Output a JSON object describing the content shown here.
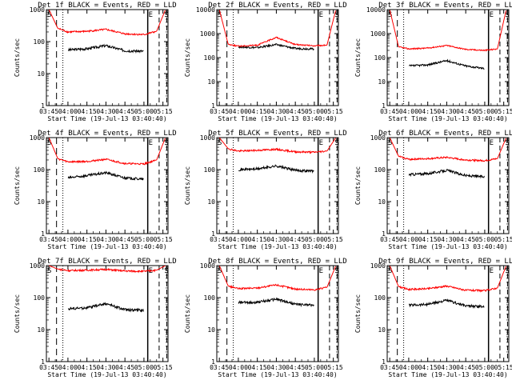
{
  "x_tick_labels": [
    "03:45",
    "04:00",
    "04:15",
    "04:30",
    "04:45",
    "05:00",
    "05:15"
  ],
  "y_tick_labels": [
    "1",
    "10",
    "100",
    "1000"
  ],
  "ylabel": "Counts/sec",
  "xlabel": "Start Time (19-Jul-13 03:40:40)",
  "markers": {
    "left": "S",
    "mid": "E",
    "right": "S"
  },
  "colors": {
    "events": "#000000",
    "lld": "#ff0000"
  },
  "chart_data": [
    {
      "type": "line",
      "title": "Det 1f BLACK = Events, RED = LLD",
      "xlabel": "Start Time (19-Jul-13 03:40:40)",
      "ylabel": "Counts/sec",
      "ylim": [
        1,
        1000
      ],
      "yscale": "log",
      "x": [
        "03:45",
        "03:52",
        "04:00",
        "04:15",
        "04:30",
        "04:45",
        "05:00",
        "05:10",
        "05:17"
      ],
      "series": [
        {
          "name": "BLACK = Events",
          "values": [
            null,
            null,
            55,
            60,
            75,
            52,
            50,
            null,
            null
          ]
        },
        {
          "name": "RED = LLD",
          "values": [
            1000,
            260,
            200,
            210,
            240,
            175,
            165,
            210,
            1000
          ]
        }
      ]
    },
    {
      "type": "line",
      "title": "Det 2f BLACK = Events, RED = LLD",
      "xlabel": "Start Time (19-Jul-13 03:40:40)",
      "ylabel": "Counts/sec",
      "ylim": [
        1,
        10000
      ],
      "yscale": "log",
      "x": [
        "03:45",
        "03:52",
        "04:00",
        "04:15",
        "04:30",
        "04:45",
        "05:00",
        "05:10",
        "05:17"
      ],
      "series": [
        {
          "name": "BLACK = Events",
          "values": [
            null,
            null,
            280,
            260,
            350,
            240,
            230,
            null,
            null
          ]
        },
        {
          "name": "RED = LLD",
          "values": [
            10000,
            360,
            300,
            330,
            700,
            350,
            310,
            330,
            10000
          ]
        }
      ]
    },
    {
      "type": "line",
      "title": "Det 3f BLACK = Events, RED = LLD",
      "xlabel": "Start Time (19-Jul-13 03:40:40)",
      "ylabel": "Counts/sec",
      "ylim": [
        1,
        10000
      ],
      "yscale": "log",
      "x": [
        "03:45",
        "03:52",
        "04:00",
        "04:15",
        "04:30",
        "04:45",
        "05:00",
        "05:10",
        "05:17"
      ],
      "series": [
        {
          "name": "BLACK = Events",
          "values": [
            null,
            null,
            45,
            50,
            75,
            45,
            35,
            null,
            null
          ]
        },
        {
          "name": "RED = LLD",
          "values": [
            10000,
            280,
            230,
            250,
            320,
            220,
            200,
            230,
            10000
          ]
        }
      ]
    },
    {
      "type": "line",
      "title": "Det 4f BLACK = Events, RED = LLD",
      "xlabel": "Start Time (19-Jul-13 03:40:40)",
      "ylabel": "Counts/sec",
      "ylim": [
        1,
        1000
      ],
      "yscale": "log",
      "x": [
        "03:45",
        "03:52",
        "04:00",
        "04:15",
        "04:30",
        "04:45",
        "05:00",
        "05:10",
        "05:17"
      ],
      "series": [
        {
          "name": "BLACK = Events",
          "values": [
            null,
            null,
            55,
            65,
            80,
            55,
            50,
            null,
            null
          ]
        },
        {
          "name": "RED = LLD",
          "values": [
            1000,
            220,
            175,
            180,
            210,
            155,
            150,
            200,
            1000
          ]
        }
      ]
    },
    {
      "type": "line",
      "title": "Det 5f BLACK = Events, RED = LLD",
      "xlabel": "Start Time (19-Jul-13 03:40:40)",
      "ylabel": "Counts/sec",
      "ylim": [
        1,
        1000
      ],
      "yscale": "log",
      "x": [
        "03:45",
        "03:52",
        "04:00",
        "04:15",
        "04:30",
        "04:45",
        "05:00",
        "05:10",
        "05:17"
      ],
      "series": [
        {
          "name": "BLACK = Events",
          "values": [
            null,
            null,
            100,
            105,
            130,
            95,
            90,
            null,
            null
          ]
        },
        {
          "name": "RED = LLD",
          "values": [
            1000,
            450,
            380,
            400,
            430,
            360,
            350,
            380,
            1000
          ]
        }
      ]
    },
    {
      "type": "line",
      "title": "Det 6f BLACK = Events, RED = LLD",
      "xlabel": "Start Time (19-Jul-13 03:40:40)",
      "ylabel": "Counts/sec",
      "ylim": [
        1,
        1000
      ],
      "yscale": "log",
      "x": [
        "03:45",
        "03:52",
        "04:00",
        "04:15",
        "04:30",
        "04:45",
        "05:00",
        "05:10",
        "05:17"
      ],
      "series": [
        {
          "name": "BLACK = Events",
          "values": [
            null,
            null,
            70,
            75,
            95,
            65,
            60,
            null,
            null
          ]
        },
        {
          "name": "RED = LLD",
          "values": [
            1000,
            260,
            210,
            220,
            240,
            200,
            190,
            220,
            1000
          ]
        }
      ]
    },
    {
      "type": "line",
      "title": "Det 7f BLACK = Events, RED = LLD",
      "xlabel": "Start Time (19-Jul-13 03:40:40)",
      "ylabel": "Counts/sec",
      "ylim": [
        1,
        1000
      ],
      "yscale": "log",
      "x": [
        "03:45",
        "03:52",
        "04:00",
        "04:15",
        "04:30",
        "04:45",
        "05:00",
        "05:10",
        "05:17"
      ],
      "series": [
        {
          "name": "BLACK = Events",
          "values": [
            null,
            null,
            45,
            48,
            65,
            42,
            40,
            null,
            null
          ]
        },
        {
          "name": "RED = LLD",
          "values": [
            1000,
            780,
            700,
            720,
            760,
            680,
            660,
            720,
            1000
          ]
        }
      ]
    },
    {
      "type": "line",
      "title": "Det 8f BLACK = Events, RED = LLD",
      "xlabel": "Start Time (19-Jul-13 03:40:40)",
      "ylabel": "Counts/sec",
      "ylim": [
        1,
        1000
      ],
      "yscale": "log",
      "x": [
        "03:45",
        "03:52",
        "04:00",
        "04:15",
        "04:30",
        "04:45",
        "05:00",
        "05:10",
        "05:17"
      ],
      "series": [
        {
          "name": "BLACK = Events",
          "values": [
            null,
            null,
            70,
            72,
            90,
            62,
            58,
            null,
            null
          ]
        },
        {
          "name": "RED = LLD",
          "values": [
            1000,
            230,
            190,
            200,
            250,
            185,
            175,
            210,
            1000
          ]
        }
      ]
    },
    {
      "type": "line",
      "title": "Det 9f BLACK = Events, RED = LLD",
      "xlabel": "Start Time (19-Jul-13 03:40:40)",
      "ylabel": "Counts/sec",
      "ylim": [
        1,
        1000
      ],
      "yscale": "log",
      "x": [
        "03:45",
        "03:52",
        "04:00",
        "04:15",
        "04:30",
        "04:45",
        "05:00",
        "05:10",
        "05:17"
      ],
      "series": [
        {
          "name": "BLACK = Events",
          "values": [
            null,
            null,
            58,
            62,
            82,
            55,
            52,
            null,
            null
          ]
        },
        {
          "name": "RED = LLD",
          "values": [
            1000,
            220,
            180,
            190,
            230,
            170,
            165,
            200,
            1000
          ]
        }
      ]
    }
  ]
}
